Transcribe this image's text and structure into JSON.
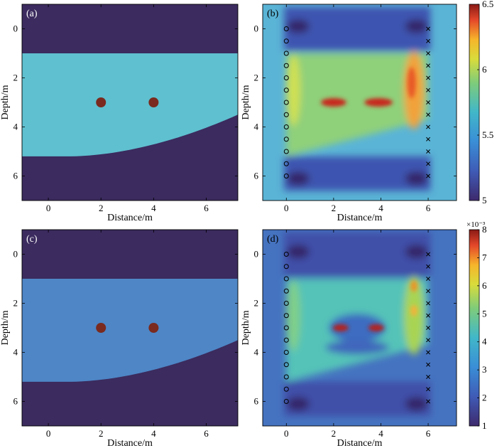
{
  "chart_data": [
    {
      "type": "heatmap",
      "panel_label": "(a)",
      "xlabel": "Distance/m",
      "ylabel": "Depth/m",
      "xlim": [
        -1,
        7.2
      ],
      "ylim": [
        7,
        -1
      ],
      "xticks": [
        "0",
        "2",
        "4",
        "6"
      ],
      "yticks": [
        "0",
        "2",
        "4",
        "6"
      ],
      "layers": {
        "top_boundary_depth": 1.0,
        "bottom_boundary_left_depth": 5.2,
        "bottom_boundary_right_depth": 3.5
      },
      "targets": [
        {
          "x": 2,
          "y": 3
        },
        {
          "x": 4,
          "y": 3
        }
      ],
      "colors": {
        "background": "#3b2b5e",
        "layer": "#5fc0cf",
        "target": "#7a2a1e"
      }
    },
    {
      "type": "heatmap",
      "panel_label": "(b)",
      "xlabel": "Distance/m",
      "ylabel": "Depth/m",
      "xlim": [
        -1,
        7.2
      ],
      "ylim": [
        7,
        -1
      ],
      "xticks": [
        "0",
        "2",
        "4",
        "6"
      ],
      "yticks": [
        "0",
        "2",
        "4",
        "6"
      ],
      "sources": {
        "x": 0,
        "y": [
          0,
          0.5,
          1,
          1.5,
          2,
          2.5,
          3,
          3.5,
          4,
          4.5,
          5,
          5.5,
          6
        ],
        "marker": "o"
      },
      "receivers": {
        "x": 6,
        "y": [
          0,
          0.5,
          1,
          1.5,
          2,
          2.5,
          3,
          3.5,
          4,
          4.5,
          5,
          5.5,
          6
        ],
        "marker": "x"
      },
      "colorbar": {
        "min": 5,
        "max": 6.5,
        "ticks": [
          "5",
          "5.5",
          "6",
          "6.5"
        ],
        "multiplier": ""
      }
    },
    {
      "type": "heatmap",
      "panel_label": "(c)",
      "xlabel": "Distance/m",
      "ylabel": "Depth/m",
      "xlim": [
        -1,
        7.2
      ],
      "ylim": [
        7,
        -1
      ],
      "xticks": [
        "0",
        "2",
        "4",
        "6"
      ],
      "yticks": [
        "0",
        "2",
        "4",
        "6"
      ],
      "layers": {
        "top_boundary_depth": 1.0,
        "bottom_boundary_left_depth": 5.2,
        "bottom_boundary_right_depth": 3.5
      },
      "targets": [
        {
          "x": 2,
          "y": 3
        },
        {
          "x": 4,
          "y": 3
        }
      ],
      "colors": {
        "background": "#3b2b5e",
        "layer": "#4e86c6",
        "target": "#7a2a1e"
      }
    },
    {
      "type": "heatmap",
      "panel_label": "(d)",
      "xlabel": "Distance/m",
      "ylabel": "Depth/m",
      "xlim": [
        -1,
        7.2
      ],
      "ylim": [
        7,
        -1
      ],
      "xticks": [
        "0",
        "2",
        "4",
        "6"
      ],
      "yticks": [
        "0",
        "2",
        "4",
        "6"
      ],
      "sources": {
        "x": 0,
        "y": [
          0,
          0.5,
          1,
          1.5,
          2,
          2.5,
          3,
          3.5,
          4,
          4.5,
          5,
          5.5,
          6
        ],
        "marker": "o"
      },
      "receivers": {
        "x": 6,
        "y": [
          0,
          0.5,
          1,
          1.5,
          2,
          2.5,
          3,
          3.5,
          4,
          4.5,
          5,
          5.5,
          6
        ],
        "marker": "x"
      },
      "colorbar": {
        "min": 1,
        "max": 8,
        "ticks": [
          "1",
          "2",
          "3",
          "4",
          "5",
          "6",
          "7",
          "8"
        ],
        "multiplier": "×10⁻³"
      }
    }
  ]
}
